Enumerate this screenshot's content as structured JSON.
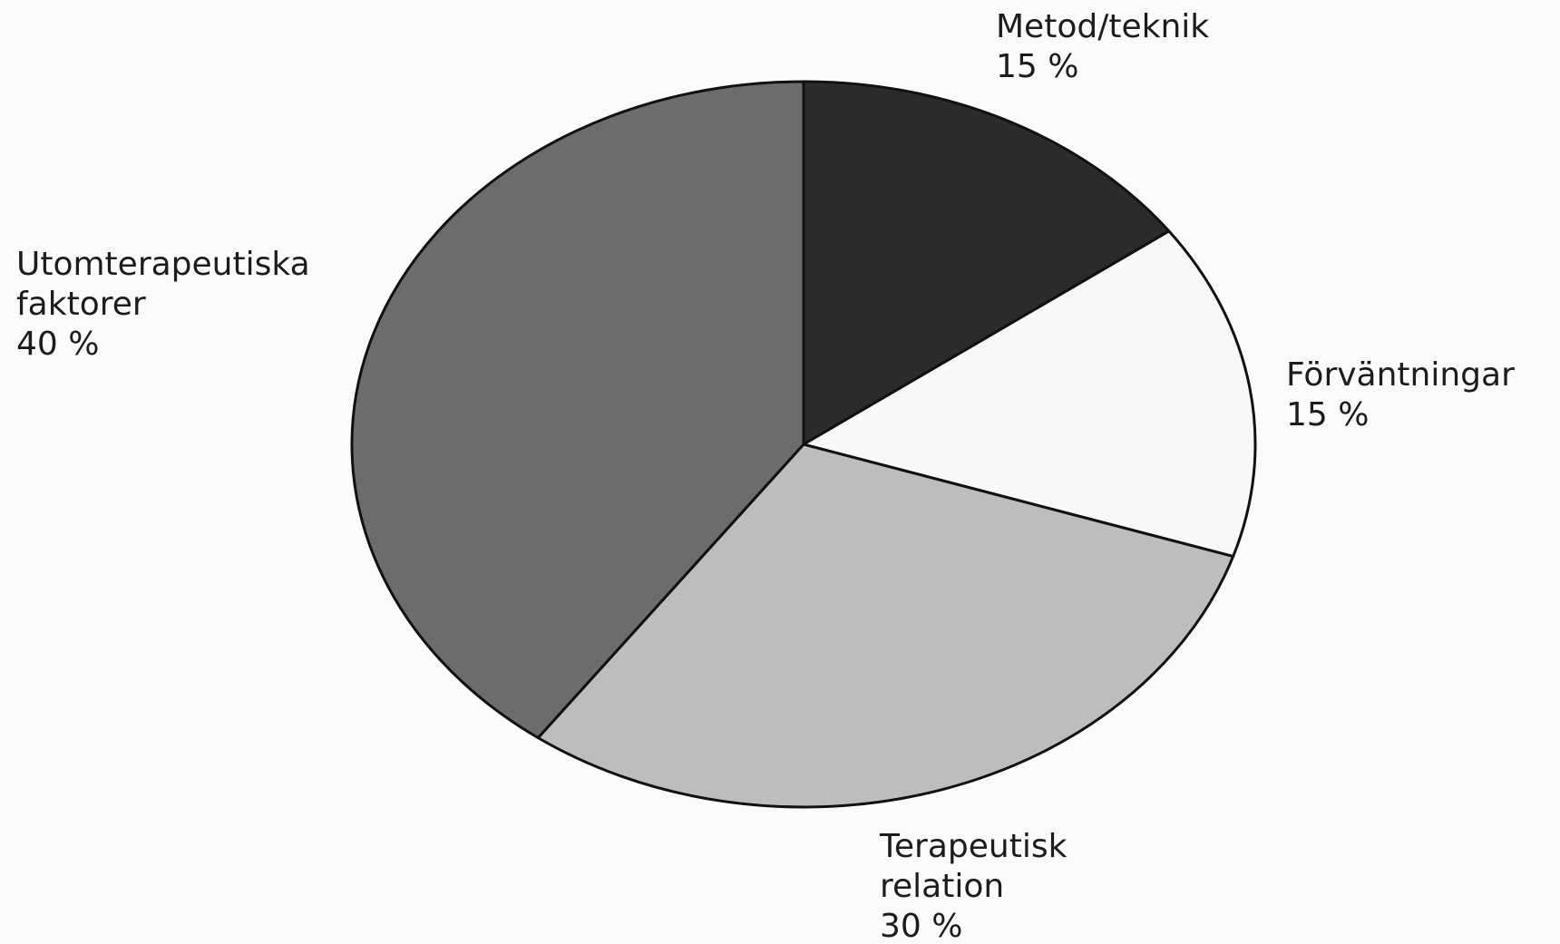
{
  "chart_data": {
    "type": "pie",
    "start_angle_deg": 0,
    "direction": "clockwise",
    "slices": [
      {
        "name_lines": [
          "Metod/teknik"
        ],
        "value": 15,
        "value_label": "15 %",
        "color": "#2b2b2b"
      },
      {
        "name_lines": [
          "Förväntningar"
        ],
        "value": 15,
        "value_label": "15 %",
        "color": "#f8f8f6"
      },
      {
        "name_lines": [
          "Terapeutisk",
          "relation"
        ],
        "value": 30,
        "value_label": "30 %",
        "color": "#bdbdbd"
      },
      {
        "name_lines": [
          "Utomterapeutiska",
          "faktorer"
        ],
        "value": 40,
        "value_label": "40 %",
        "color": "#6c6c6c"
      }
    ]
  }
}
